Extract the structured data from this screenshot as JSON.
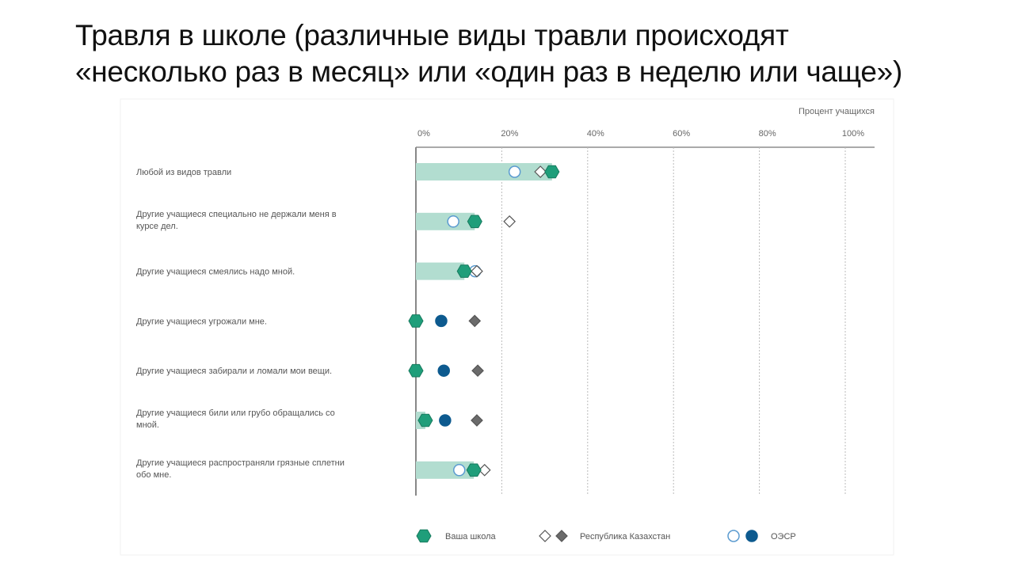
{
  "title_lines": [
    "Травля в школе (различные виды травли происходят",
    "«несколько раз в месяц» или «один раз в неделю или чаще»)"
  ],
  "chart_data": {
    "type": "dot-bar",
    "xlabel": "Процент учащихся",
    "xlim": [
      0,
      100
    ],
    "ticks": [
      0,
      20,
      40,
      60,
      80,
      100
    ],
    "tick_labels": [
      "0%",
      "20%",
      "40%",
      "60%",
      "80%",
      "100%"
    ],
    "grid": true,
    "legend_position": "bottom",
    "colors": {
      "school": "#1f9e7a",
      "bar": "#b2ddd0",
      "kz": "#6b6b6b",
      "oecd_fill": "#0d5a8f",
      "oecd_stroke": "#5b9bd0"
    },
    "legend": [
      "Ваша школа",
      "Республика Казахстан",
      "ОЭСР"
    ],
    "categories": [
      [
        "Любой из видов травли"
      ],
      [
        "Другие учащиеся специально не держали меня в",
        "курсе дел."
      ],
      [
        "Другие учащиеся смеялись надо мной."
      ],
      [
        "Другие учащиеся угрожали мне."
      ],
      [
        "Другие учащиеся забирали и ломали мои вещи."
      ],
      [
        "Другие учащиеся били или грубо обращались со",
        "мной."
      ],
      [
        "Другие учащиеся распространяли грязные сплетни",
        "обо мне."
      ]
    ],
    "series": [
      {
        "name": "Ваша школа",
        "values": [
          31.7,
          13.7,
          11.3,
          0,
          0,
          2.2,
          13.5
        ]
      },
      {
        "name": "Республика Казахстан",
        "values": [
          29,
          21.8,
          14.2,
          13.7,
          14.4,
          14.2,
          16
        ],
        "filled": [
          false,
          false,
          false,
          true,
          true,
          true,
          false
        ]
      },
      {
        "name": "ОЭСР",
        "values": [
          23,
          8.7,
          13.8,
          5.9,
          6.5,
          6.8,
          10.1
        ],
        "filled": [
          false,
          false,
          false,
          true,
          true,
          true,
          false
        ]
      }
    ]
  }
}
